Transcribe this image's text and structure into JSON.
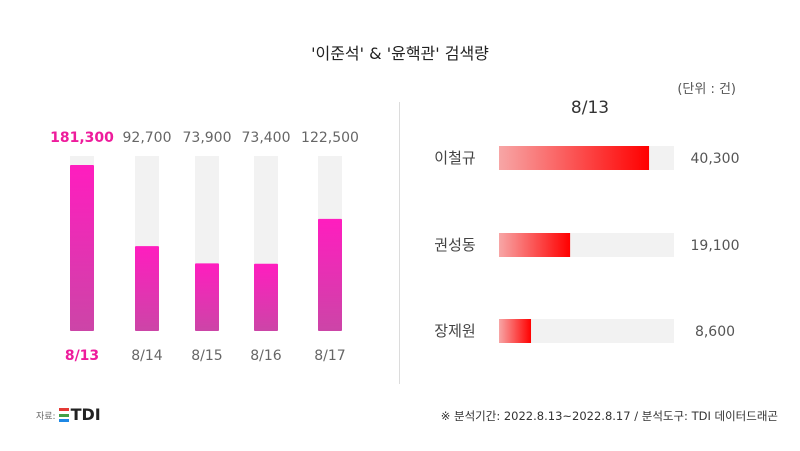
{
  "title": "'이준석' & '윤핵관' 검색량",
  "unit": "(단위 : 건)",
  "source_label": "자료:",
  "logo_text": "TDI",
  "footnote": "※ 분석기간: 2022.8.13~2022.8.17 / 분석도구: TDI 데이터드래곤",
  "colors": {
    "highlight": "#ee1c9c",
    "bar_top": "#ff1dbf",
    "bar_bottom": "#cc45a7",
    "track": "#f2f2f2",
    "hbar_start": "#f7a6a6",
    "hbar_end": "#ff0000"
  },
  "chart_data": [
    {
      "type": "bar",
      "categories": [
        "8/13",
        "8/14",
        "8/15",
        "8/16",
        "8/17"
      ],
      "values": [
        181300,
        92700,
        73900,
        73400,
        122500
      ],
      "value_labels": [
        "181,300",
        "92,700",
        "73,900",
        "73,400",
        "122,500"
      ],
      "highlight_index": 0,
      "ylim": [
        0,
        181300
      ]
    },
    {
      "type": "bar",
      "orientation": "horizontal",
      "title": "8/13",
      "categories": [
        "이철규",
        "권성동",
        "장제원"
      ],
      "values": [
        40300,
        19100,
        8600
      ],
      "value_labels": [
        "40,300",
        "19,100",
        "8,600"
      ]
    }
  ]
}
